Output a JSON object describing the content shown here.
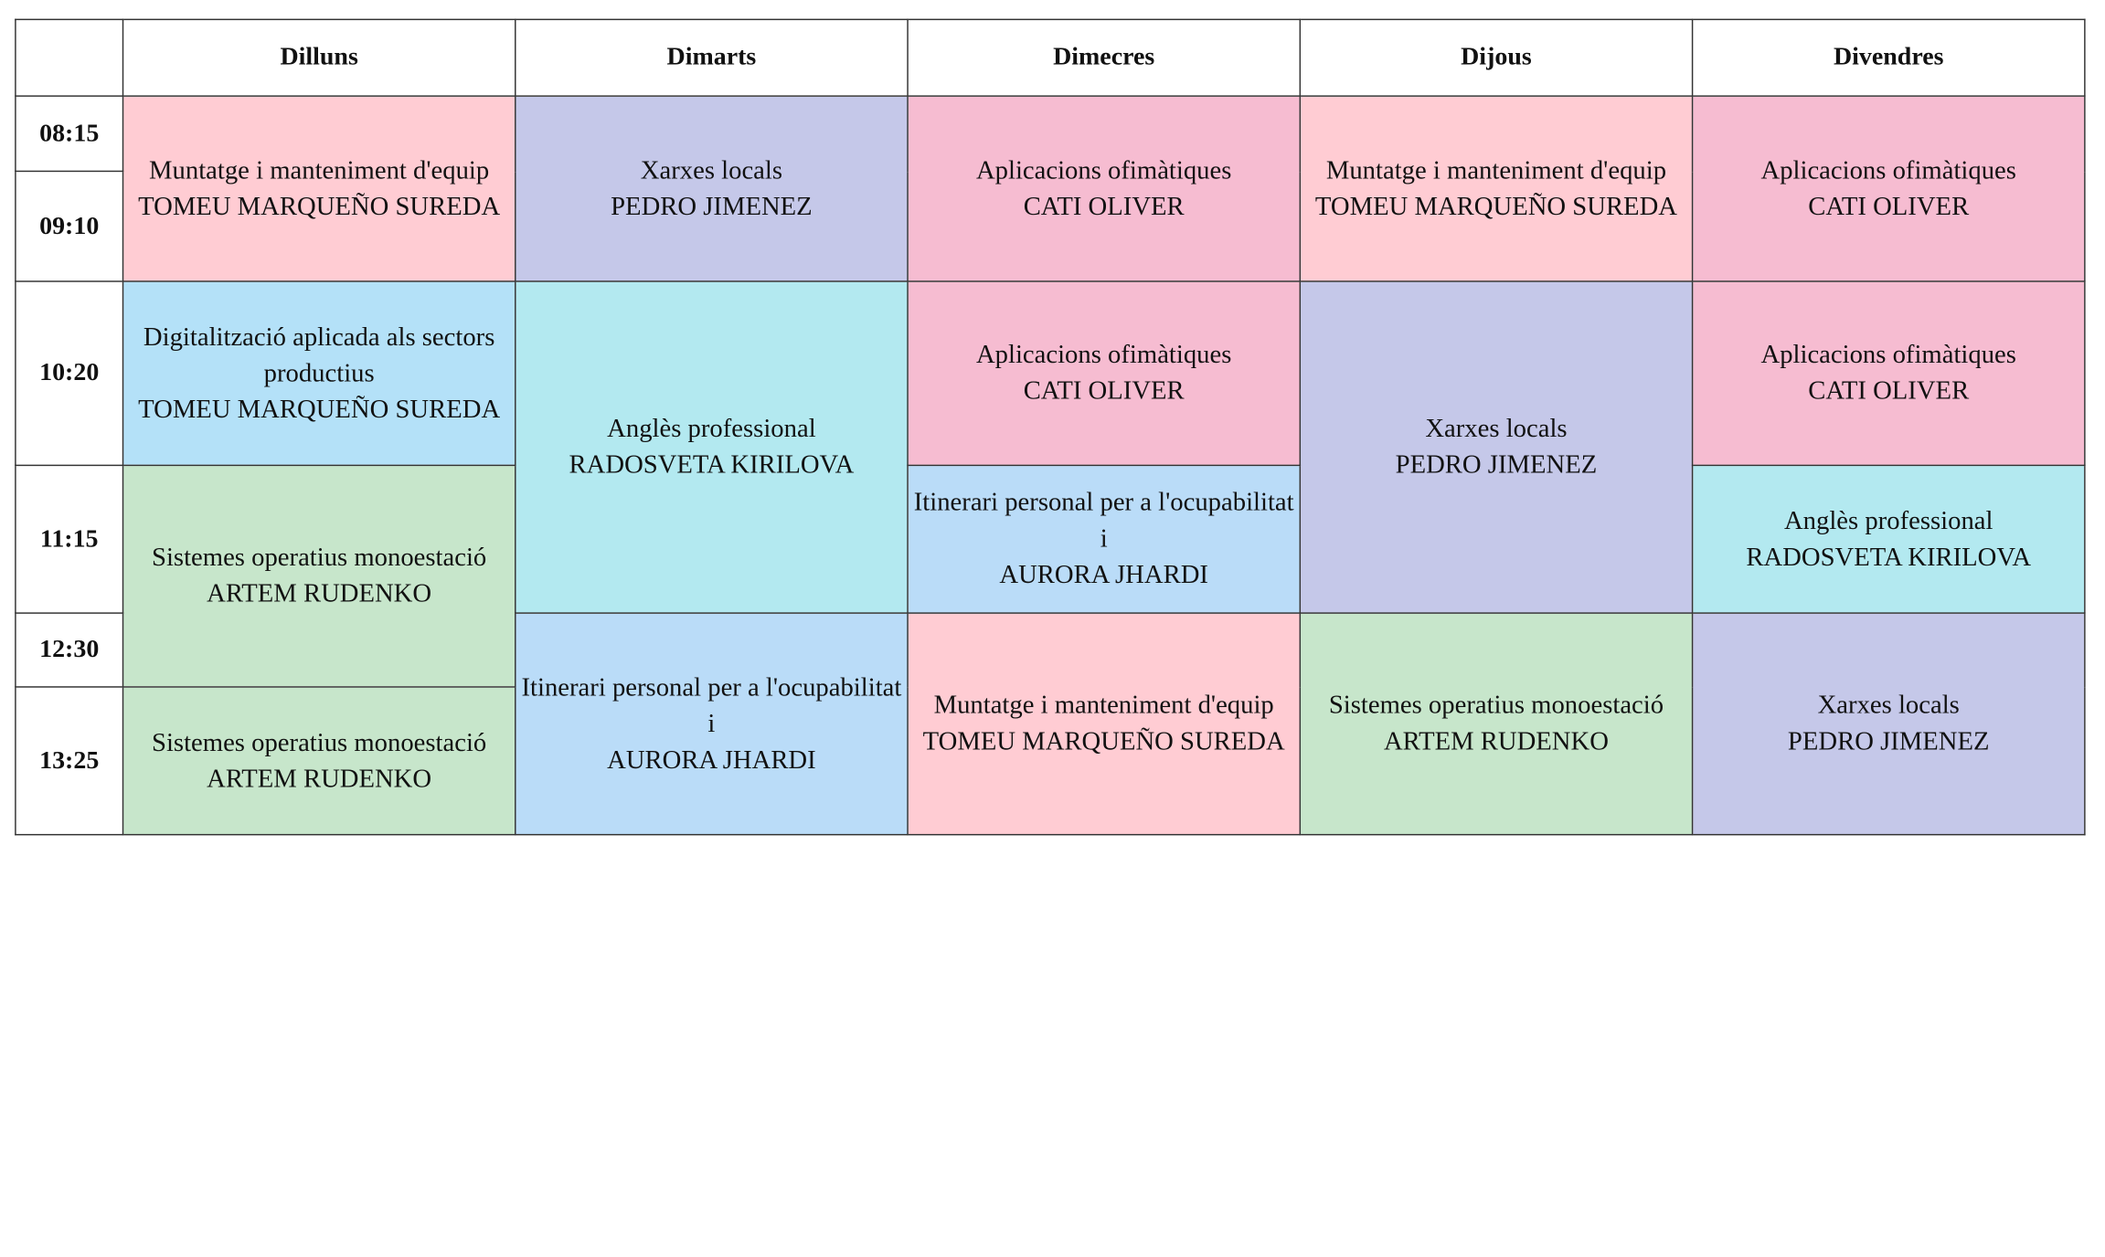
{
  "days": [
    "Dilluns",
    "Dimarts",
    "Dimecres",
    "Dijous",
    "Divendres"
  ],
  "times": [
    "08:15",
    "09:10",
    "10:20",
    "11:15",
    "12:30",
    "13:25"
  ],
  "cells": {
    "mon_1": {
      "subject": "Muntatge i manteniment d'equip",
      "teacher": "TOMEU MARQUEÑO SUREDA"
    },
    "mon_2": {
      "subject": "Digitalització aplicada als sectors productius",
      "teacher": "TOMEU MARQUEÑO SUREDA"
    },
    "mon_3": {
      "subject": "Sistemes operatius monoestació",
      "teacher": "ARTEM RUDENKO"
    },
    "mon_4": {
      "subject": "Sistemes operatius monoestació",
      "teacher": "ARTEM RUDENKO"
    },
    "tue_1": {
      "subject": "Xarxes locals",
      "teacher": "PEDRO JIMENEZ"
    },
    "tue_2": {
      "subject": "Anglès professional",
      "teacher": "RADOSVETA KIRILOVA"
    },
    "tue_3": {
      "subject": "Itinerari personal per a l'ocupabilitat i",
      "teacher": "AURORA JHARDI"
    },
    "wed_1": {
      "subject": "Aplicacions ofimàtiques",
      "teacher": "CATI OLIVER"
    },
    "wed_2": {
      "subject": "Aplicacions ofimàtiques",
      "teacher": "CATI OLIVER"
    },
    "wed_3": {
      "subject": "Itinerari personal per a l'ocupabilitat i",
      "teacher": "AURORA JHARDI"
    },
    "wed_4": {
      "subject": "Muntatge i manteniment d'equip",
      "teacher": "TOMEU MARQUEÑO SUREDA"
    },
    "thu_1": {
      "subject": "Muntatge i manteniment d'equip",
      "teacher": "TOMEU MARQUEÑO SUREDA"
    },
    "thu_2": {
      "subject": "Xarxes locals",
      "teacher": "PEDRO JIMENEZ"
    },
    "thu_3": {
      "subject": "Sistemes operatius monoestació",
      "teacher": "ARTEM RUDENKO"
    },
    "fri_1": {
      "subject": "Aplicacions ofimàtiques",
      "teacher": "CATI OLIVER"
    },
    "fri_2": {
      "subject": "Aplicacions ofimàtiques",
      "teacher": "CATI OLIVER"
    },
    "fri_3": {
      "subject": "Anglès professional",
      "teacher": "RADOSVETA KIRILOVA"
    },
    "fri_4": {
      "subject": "Xarxes locals",
      "teacher": "PEDRO JIMENEZ"
    }
  },
  "colors": {
    "pink": "#ffccd3",
    "lavender": "#c5c8e9",
    "rose": "#f6bcd1",
    "sky": "#b4e1f8",
    "cyan": "#b3e9f0",
    "green": "#c7e6cb",
    "light_blue": "#badcf8"
  }
}
